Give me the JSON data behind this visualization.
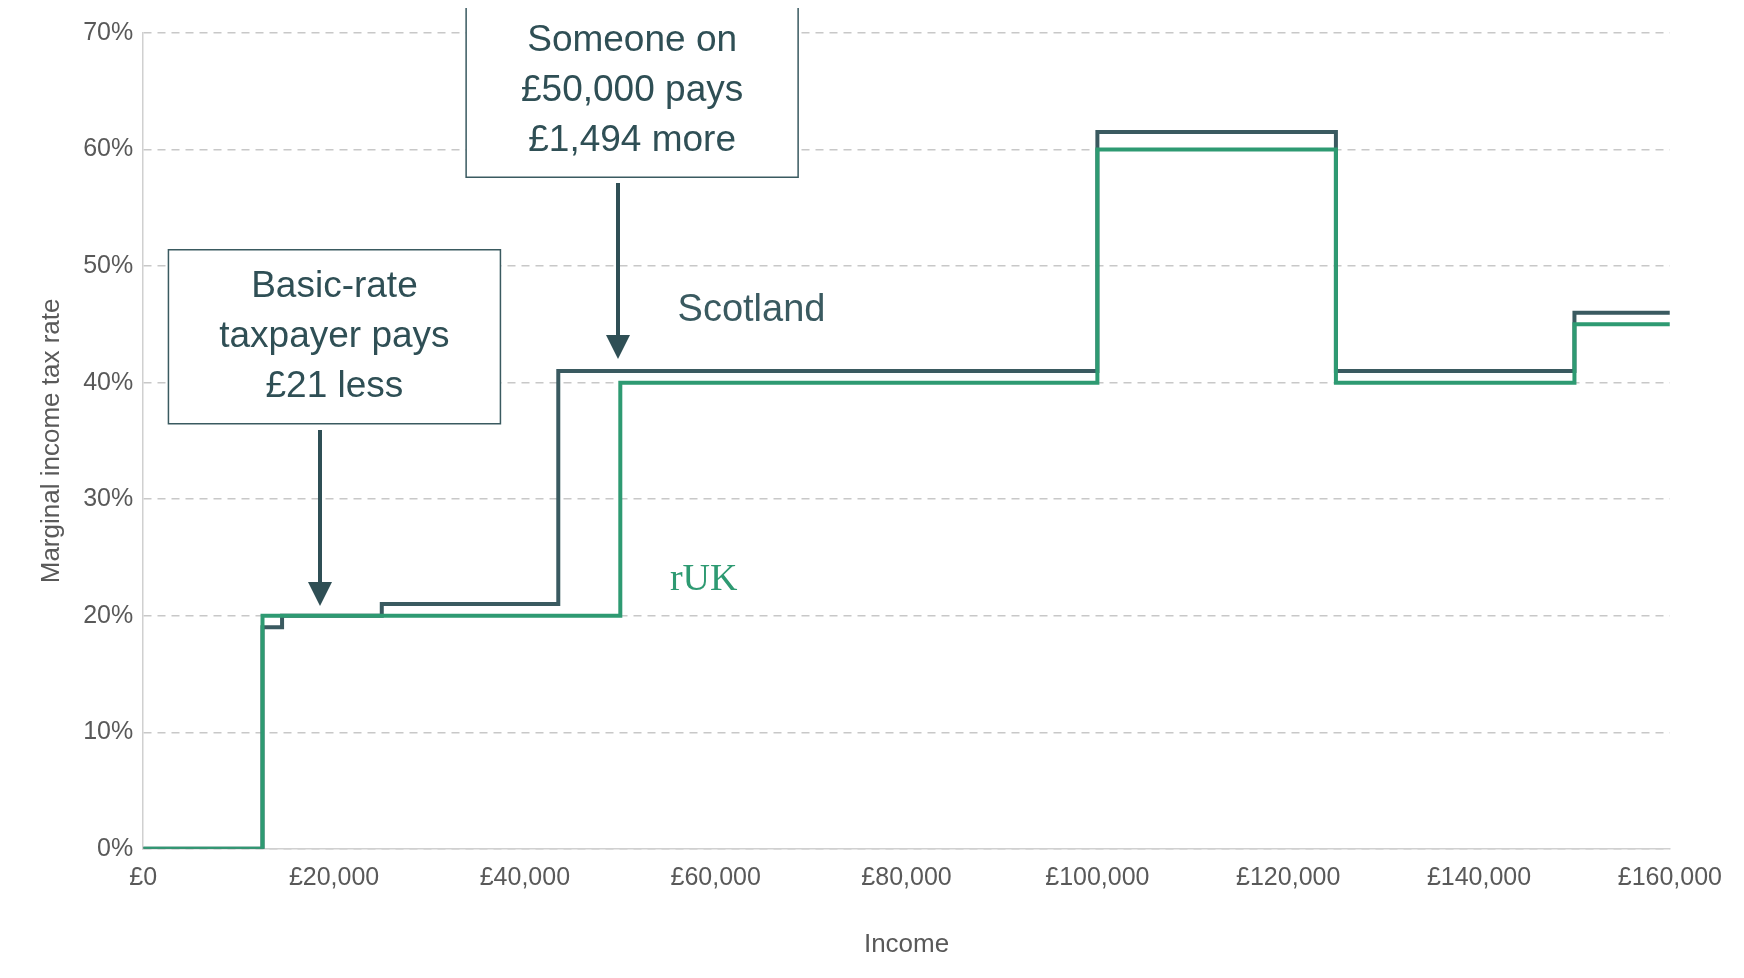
{
  "chart_data": {
    "type": "step",
    "xlabel": "Income",
    "ylabel": "Marginal income tax rate",
    "xlim": [
      0,
      160000
    ],
    "ylim": [
      0,
      70
    ],
    "xticks": [
      {
        "value": 0,
        "label": "£0"
      },
      {
        "value": 20000,
        "label": "£20,000"
      },
      {
        "value": 40000,
        "label": "£40,000"
      },
      {
        "value": 60000,
        "label": "£60,000"
      },
      {
        "value": 80000,
        "label": "£80,000"
      },
      {
        "value": 100000,
        "label": "£100,000"
      },
      {
        "value": 120000,
        "label": "£120,000"
      },
      {
        "value": 140000,
        "label": "£140,000"
      },
      {
        "value": 160000,
        "label": "£160,000"
      }
    ],
    "yticks": [
      {
        "value": 0,
        "label": "0%"
      },
      {
        "value": 10,
        "label": "10%"
      },
      {
        "value": 20,
        "label": "20%"
      },
      {
        "value": 30,
        "label": "30%"
      },
      {
        "value": 40,
        "label": "40%"
      },
      {
        "value": 50,
        "label": "50%"
      },
      {
        "value": 60,
        "label": "60%"
      },
      {
        "value": 70,
        "label": "70%"
      }
    ],
    "grid": "y",
    "legend": false,
    "series": [
      {
        "name": "rUK",
        "color": "#2e9a72",
        "x": [
          0,
          12500,
          50000,
          100000,
          125000,
          150000,
          160000
        ],
        "values": [
          0,
          20,
          40,
          60,
          40,
          45,
          45
        ]
      },
      {
        "name": "Scotland",
        "color": "#3a5a60",
        "x": [
          0,
          12500,
          14550,
          25000,
          43500,
          100000,
          125000,
          150000,
          160000
        ],
        "values": [
          0,
          19,
          20,
          21,
          41,
          61.5,
          41,
          46,
          46
        ]
      }
    ],
    "annotations": [
      "Basic-rate taxpayer pays £21 less",
      "Someone on £50,000 pays £1,494 more"
    ]
  }
}
